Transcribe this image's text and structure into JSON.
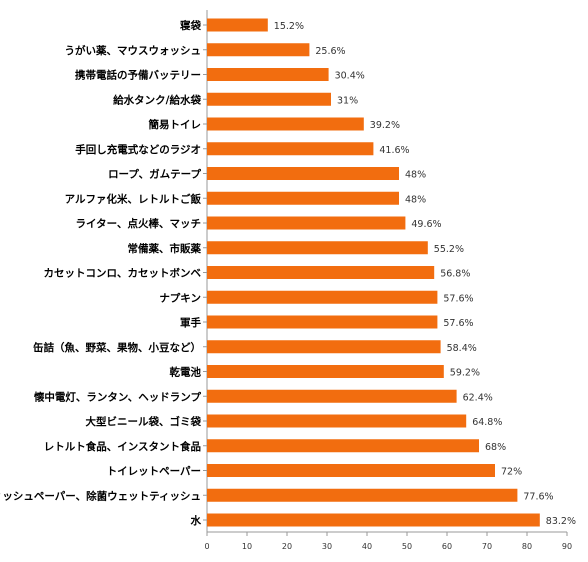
{
  "chart_data": {
    "type": "bar",
    "orientation": "horizontal",
    "categories": [
      "寝袋",
      "うがい薬、マウスウォッシュ",
      "携帯電話の予備バッテリー",
      "給水タンク/給水袋",
      "簡易トイレ",
      "手回し充電式などのラジオ",
      "ロープ、ガムテープ",
      "アルファ化米、レトルトご飯",
      "ライター、点火棒、マッチ",
      "常備薬、市販薬",
      "カセットコンロ、カセットボンベ",
      "ナプキン",
      "軍手",
      "缶詰（魚、野菜、果物、小豆など）",
      "乾電池",
      "懐中電灯、ランタン、ヘッドランプ",
      "大型ビニール袋、ゴミ袋",
      "レトルト食品、インスタント食品",
      "トイレットペーパー",
      "ティッシュペーパー、除菌ウェットティッシュ",
      "水"
    ],
    "values": [
      15.2,
      25.6,
      30.4,
      31,
      39.2,
      41.6,
      48,
      48,
      49.6,
      55.2,
      56.8,
      57.6,
      57.6,
      58.4,
      59.2,
      62.4,
      64.8,
      68,
      72,
      77.6,
      83.2
    ],
    "value_labels": [
      "15.2%",
      "25.6%",
      "30.4%",
      "31%",
      "39.2%",
      "41.6%",
      "48%",
      "48%",
      "49.6%",
      "55.2%",
      "56.8%",
      "57.6%",
      "57.6%",
      "58.4%",
      "59.2%",
      "62.4%",
      "64.8%",
      "68%",
      "72%",
      "77.6%",
      "83.2%"
    ],
    "xlim": [
      0,
      90
    ],
    "x_ticks": [
      0,
      10,
      20,
      30,
      40,
      50,
      60,
      70,
      80,
      90
    ],
    "grid": false,
    "bar_color": "#f26d0f"
  }
}
